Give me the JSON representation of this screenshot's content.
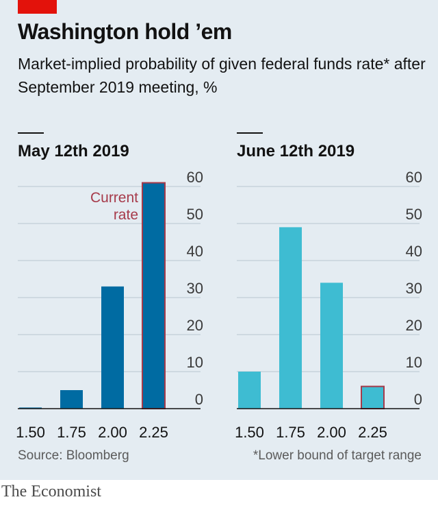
{
  "header": {
    "title": "Washington hold ’em",
    "subtitle": "Market-implied probability of given federal funds rate* after September 2019 meeting, %"
  },
  "footer": {
    "source": "Source: Bloomberg",
    "footnote": "*Lower bound of target range",
    "brand": "The Economist"
  },
  "colors": {
    "accent_red": "#e3120b",
    "bar_dark": "#006ba2",
    "bar_light": "#3ebcd2",
    "highlight_outline": "#a63a4a",
    "gridline": "#b7c6d0"
  },
  "chart_data": [
    {
      "type": "bar",
      "title": "May 12th 2019",
      "categories": [
        "1.50",
        "1.75",
        "2.00",
        "2.25"
      ],
      "values": [
        0.3,
        5,
        33,
        61
      ],
      "highlight_category": "2.25",
      "annotation": [
        "Current",
        "rate"
      ],
      "ylim": [
        0,
        60
      ],
      "yticks": [
        "0",
        "10",
        "20",
        "30",
        "40",
        "50",
        "60"
      ],
      "y_axis_side": "right",
      "grid": true,
      "bar_color": "#006ba2"
    },
    {
      "type": "bar",
      "title": "June 12th 2019",
      "categories": [
        "1.50",
        "1.75",
        "2.00",
        "2.25"
      ],
      "values": [
        10,
        49,
        34,
        6
      ],
      "highlight_category": "2.25",
      "ylim": [
        0,
        60
      ],
      "yticks": [
        "0",
        "10",
        "20",
        "30",
        "40",
        "50",
        "60"
      ],
      "y_axis_side": "right",
      "grid": true,
      "bar_color": "#3ebcd2"
    }
  ]
}
